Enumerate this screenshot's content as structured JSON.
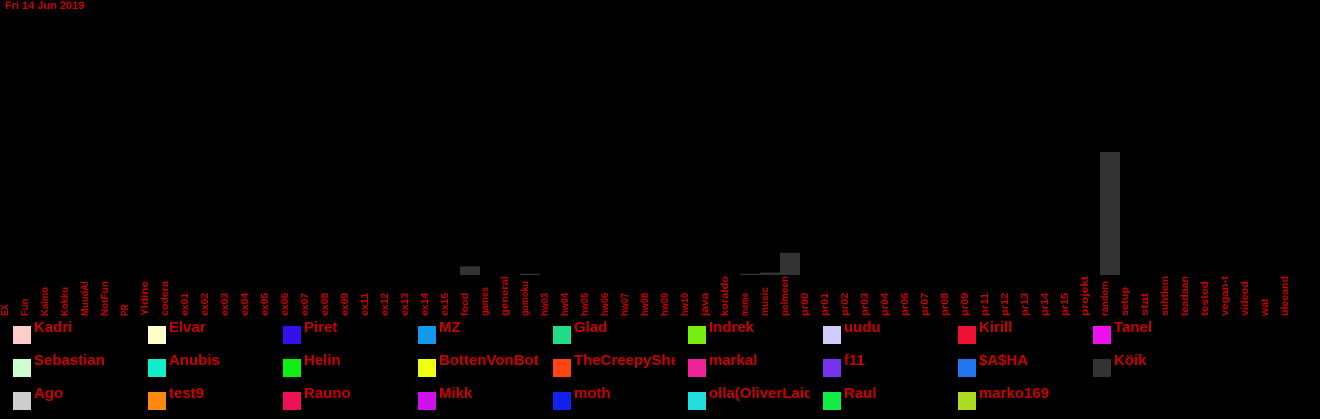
{
  "chart_data": {
    "type": "bar",
    "title": "Fri 14 Jun 2019",
    "xlabel": "",
    "ylabel": "",
    "ylim": [
      0,
      100
    ],
    "grid": false,
    "categories": [
      "EX",
      "Fun",
      "Kalmo",
      "Kokku",
      "MuudAl",
      "NotFun",
      "PR",
      "Yldine",
      "codera",
      "ex01",
      "ex02",
      "ex03",
      "ex04",
      "ex05",
      "ex06",
      "ex07",
      "ex08",
      "ex09",
      "ex11",
      "ex12",
      "ex13",
      "ex14",
      "ex15",
      "food",
      "games",
      "general",
      "gomoku",
      "hw03",
      "hw04",
      "hw05",
      "hw06",
      "hw07",
      "hw08",
      "hw09",
      "hw10",
      "java",
      "koraldo",
      "meme",
      "music",
      "pelmeen",
      "pr00",
      "pr01",
      "pr02",
      "pr03",
      "pr04",
      "pr06",
      "pr07",
      "pr08",
      "pr09",
      "pr11",
      "pr12",
      "pr13",
      "pr14",
      "pr15",
      "projekt",
      "random",
      "setup",
      "stat",
      "suhtlem",
      "teadaan",
      "tested",
      "vegan-t",
      "videod",
      "wat",
      "üleeand"
    ],
    "values": [
      0,
      0,
      0,
      0,
      0,
      0,
      0,
      0,
      0,
      0,
      0,
      0,
      0,
      0,
      0,
      0,
      0,
      0,
      0,
      0,
      0,
      0,
      0,
      7,
      0,
      0,
      1,
      0,
      0,
      0,
      0,
      0,
      0,
      0,
      0,
      0,
      0,
      1,
      2,
      18,
      0,
      0,
      0,
      0,
      0,
      0,
      0,
      0,
      0,
      0,
      0,
      0,
      0,
      0,
      0,
      100,
      0,
      0,
      0,
      0,
      0,
      0,
      0,
      0,
      0
    ],
    "bar_color": "#333333",
    "label_color": "#cc0000",
    "legend_position": "bottom",
    "legend": [
      {
        "name": "Kadri",
        "color": "#ffcccc"
      },
      {
        "name": "Elvar",
        "color": "#ffffcc"
      },
      {
        "name": "Piret",
        "color": "#3311ee"
      },
      {
        "name": "MZ",
        "color": "#1199ee"
      },
      {
        "name": "Glad",
        "color": "#22dd88"
      },
      {
        "name": "Indrek",
        "color": "#77ee11"
      },
      {
        "name": "uudu",
        "color": "#ccccff"
      },
      {
        "name": "Kirill",
        "color": "#ee1133"
      },
      {
        "name": "Tanel",
        "color": "#ee11ee"
      },
      {
        "name": "Sebastian",
        "color": "#ccffcc"
      },
      {
        "name": "Anubis",
        "color": "#11eecc"
      },
      {
        "name": "Helin",
        "color": "#11ee11"
      },
      {
        "name": "BottenVonBot",
        "color": "#eeff11"
      },
      {
        "name": "TheCreepySheep",
        "color": "#ff4411"
      },
      {
        "name": "markal",
        "color": "#ee2299"
      },
      {
        "name": "f11",
        "color": "#7733ee"
      },
      {
        "name": "$A$HA",
        "color": "#2277ee"
      },
      {
        "name": "Köik",
        "color": "#333333"
      },
      {
        "name": "Ago",
        "color": "#cccccc"
      },
      {
        "name": "test9",
        "color": "#ff8811"
      },
      {
        "name": "Rauno",
        "color": "#ee1155"
      },
      {
        "name": "Mikk",
        "color": "#cc11ee"
      },
      {
        "name": "moth",
        "color": "#1122ee"
      },
      {
        "name": "olla(OliverLaidma)",
        "color": "#22dddd"
      },
      {
        "name": "Raul",
        "color": "#11ee44"
      },
      {
        "name": "marko169",
        "color": "#aadd22"
      }
    ]
  }
}
